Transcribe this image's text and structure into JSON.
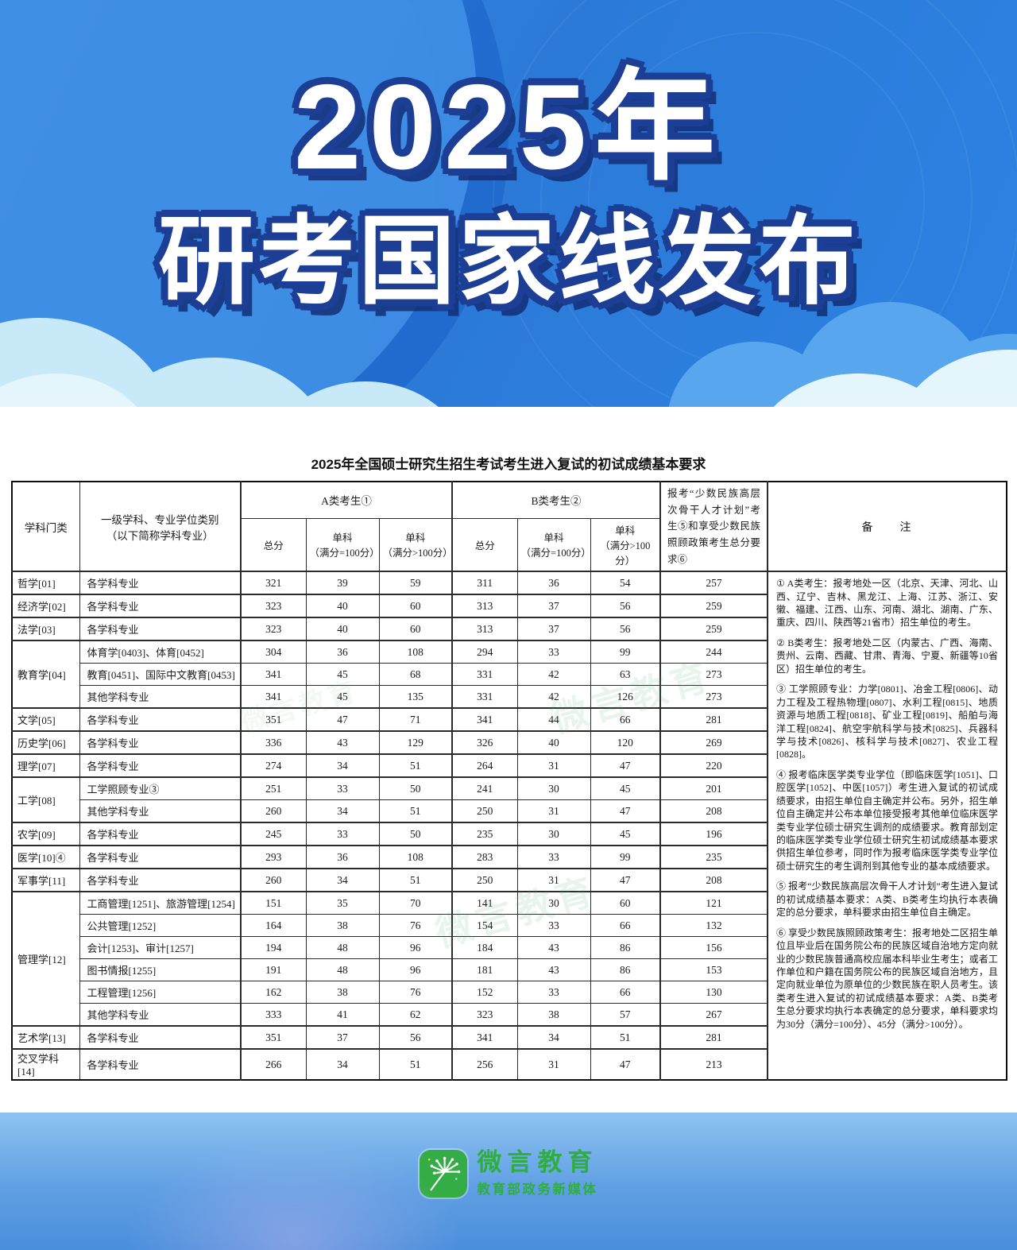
{
  "banner": {
    "line1": "2025年",
    "line2": "研考国家线发布"
  },
  "table": {
    "title": "2025年全国硕士研究生招生考试考生进入复试的初试成绩基本要求",
    "headers": {
      "col_category": "学科门类",
      "col_specialty": "一级学科、专业学位类别\n（以下简称学科专业）",
      "group_a": "A类考生①",
      "group_b": "B类考生②",
      "sub_total": "总分",
      "sub_single100": "单科\n（满分=100分）",
      "sub_single_gt100": "单科\n（满分>100分）",
      "col_minority": "报考“少数民族高层次骨干人才计划”考生⑤和享受少数民族照顾政策考生总分要求⑥",
      "col_remark": "备　　注"
    },
    "rows": [
      {
        "cat": "哲学[01]",
        "span": 1,
        "spec": "各学科专业",
        "a": [
          321,
          39,
          59
        ],
        "b": [
          311,
          36,
          54
        ],
        "m": 257
      },
      {
        "cat": "经济学[02]",
        "span": 1,
        "spec": "各学科专业",
        "a": [
          323,
          40,
          60
        ],
        "b": [
          313,
          37,
          56
        ],
        "m": 259
      },
      {
        "cat": "法学[03]",
        "span": 1,
        "spec": "各学科专业",
        "a": [
          323,
          40,
          60
        ],
        "b": [
          313,
          37,
          56
        ],
        "m": 259
      },
      {
        "cat": "教育学[04]",
        "span": 3,
        "spec": "体育学[0403]、体育[0452]",
        "a": [
          304,
          36,
          108
        ],
        "b": [
          294,
          33,
          99
        ],
        "m": 244
      },
      {
        "spec": "教育[0451]、国际中文教育[0453]",
        "a": [
          341,
          45,
          68
        ],
        "b": [
          331,
          42,
          63
        ],
        "m": 273
      },
      {
        "spec": "其他学科专业",
        "a": [
          341,
          45,
          135
        ],
        "b": [
          331,
          42,
          126
        ],
        "m": 273
      },
      {
        "cat": "文学[05]",
        "span": 1,
        "spec": "各学科专业",
        "a": [
          351,
          47,
          71
        ],
        "b": [
          341,
          44,
          66
        ],
        "m": 281
      },
      {
        "cat": "历史学[06]",
        "span": 1,
        "spec": "各学科专业",
        "a": [
          336,
          43,
          129
        ],
        "b": [
          326,
          40,
          120
        ],
        "m": 269
      },
      {
        "cat": "理学[07]",
        "span": 1,
        "spec": "各学科专业",
        "a": [
          274,
          34,
          51
        ],
        "b": [
          264,
          31,
          47
        ],
        "m": 220
      },
      {
        "cat": "工学[08]",
        "span": 2,
        "spec": "工学照顾专业③",
        "a": [
          251,
          33,
          50
        ],
        "b": [
          241,
          30,
          45
        ],
        "m": 201
      },
      {
        "spec": "其他学科专业",
        "a": [
          260,
          34,
          51
        ],
        "b": [
          250,
          31,
          47
        ],
        "m": 208
      },
      {
        "cat": "农学[09]",
        "span": 1,
        "spec": "各学科专业",
        "a": [
          245,
          33,
          50
        ],
        "b": [
          235,
          30,
          45
        ],
        "m": 196
      },
      {
        "cat": "医学[10]④",
        "span": 1,
        "spec": "各学科专业",
        "a": [
          293,
          36,
          108
        ],
        "b": [
          283,
          33,
          99
        ],
        "m": 235
      },
      {
        "cat": "军事学[11]",
        "span": 1,
        "spec": "各学科专业",
        "a": [
          260,
          34,
          51
        ],
        "b": [
          250,
          31,
          47
        ],
        "m": 208
      },
      {
        "cat": "管理学[12]",
        "span": 6,
        "spec": "工商管理[1251]、旅游管理[1254]",
        "a": [
          151,
          35,
          70
        ],
        "b": [
          141,
          30,
          60
        ],
        "m": 121
      },
      {
        "spec": "公共管理[1252]",
        "a": [
          164,
          38,
          76
        ],
        "b": [
          154,
          33,
          66
        ],
        "m": 132
      },
      {
        "spec": "会计[1253]、审计[1257]",
        "a": [
          194,
          48,
          96
        ],
        "b": [
          184,
          43,
          86
        ],
        "m": 156
      },
      {
        "spec": "图书情报[1255]",
        "a": [
          191,
          48,
          96
        ],
        "b": [
          181,
          43,
          86
        ],
        "m": 153
      },
      {
        "spec": "工程管理[1256]",
        "a": [
          162,
          38,
          76
        ],
        "b": [
          152,
          33,
          66
        ],
        "m": 130
      },
      {
        "spec": "其他学科专业",
        "a": [
          333,
          41,
          62
        ],
        "b": [
          323,
          38,
          57
        ],
        "m": 267
      },
      {
        "cat": "艺术学[13]",
        "span": 1,
        "spec": "各学科专业",
        "a": [
          351,
          37,
          56
        ],
        "b": [
          341,
          34,
          51
        ],
        "m": 281
      },
      {
        "cat": "交叉学科[14]",
        "span": 1,
        "spec": "各学科专业",
        "a": [
          266,
          34,
          51
        ],
        "b": [
          256,
          31,
          47
        ],
        "m": 213
      }
    ],
    "notes": [
      "① A类考生：报考地处一区（北京、天津、河北、山西、辽宁、吉林、黑龙江、上海、江苏、浙江、安徽、福建、江西、山东、河南、湖北、湖南、广东、重庆、四川、陕西等21省市）招生单位的考生。",
      "② B类考生：报考地处二区（内蒙古、广西、海南、贵州、云南、西藏、甘肃、青海、宁夏、新疆等10省区）招生单位的考生。",
      "③ 工学照顾专业：力学[0801]、冶金工程[0806]、动力工程及工程热物理[0807]、水利工程[0815]、地质资源与地质工程[0818]、矿业工程[0819]、船舶与海洋工程[0824]、航空宇航科学与技术[0825]、兵器科学与技术[0826]、核科学与技术[0827]、农业工程[0828]。",
      "④ 报考临床医学类专业学位（即临床医学[1051]、口腔医学[1052]、中医[1057]）考生进入复试的初试成绩要求，由招生单位自主确定并公布。另外，招生单位自主确定并公布本单位接受报考其他单位临床医学类专业学位硕士研究生调剂的成绩要求。教育部划定的临床医学类专业学位硕士研究生初试成绩基本要求供招生单位参考，同时作为报考临床医学类专业学位硕士研究生的考生调剂到其他专业的基本成绩要求。",
      "⑤ 报考“少数民族高层次骨干人才计划”考生进入复试的初试成绩基本要求：A类、B类考生均执行本表确定的总分要求，单科要求由招生单位自主确定。",
      "⑥ 享受少数民族照顾政策考生：报考地处二区招生单位且毕业后在国务院公布的民族区域自治地方定向就业的少数民族普通高校应届本科毕业生考生；或者工作单位和户籍在国务院公布的民族区域自治地方，且定向就业单位为原单位的少数民族在职人员考生。该类考生进入复试的初试成绩基本要求：A类、B类考生总分要求均执行本表确定的总分要求，单科要求均为30分（满分=100分）、45分（满分>100分）。"
    ]
  },
  "footer": {
    "logo_title": "微言教育",
    "logo_subtitle": "教育部政务新媒体"
  },
  "watermark": {
    "text": "微言教育"
  }
}
